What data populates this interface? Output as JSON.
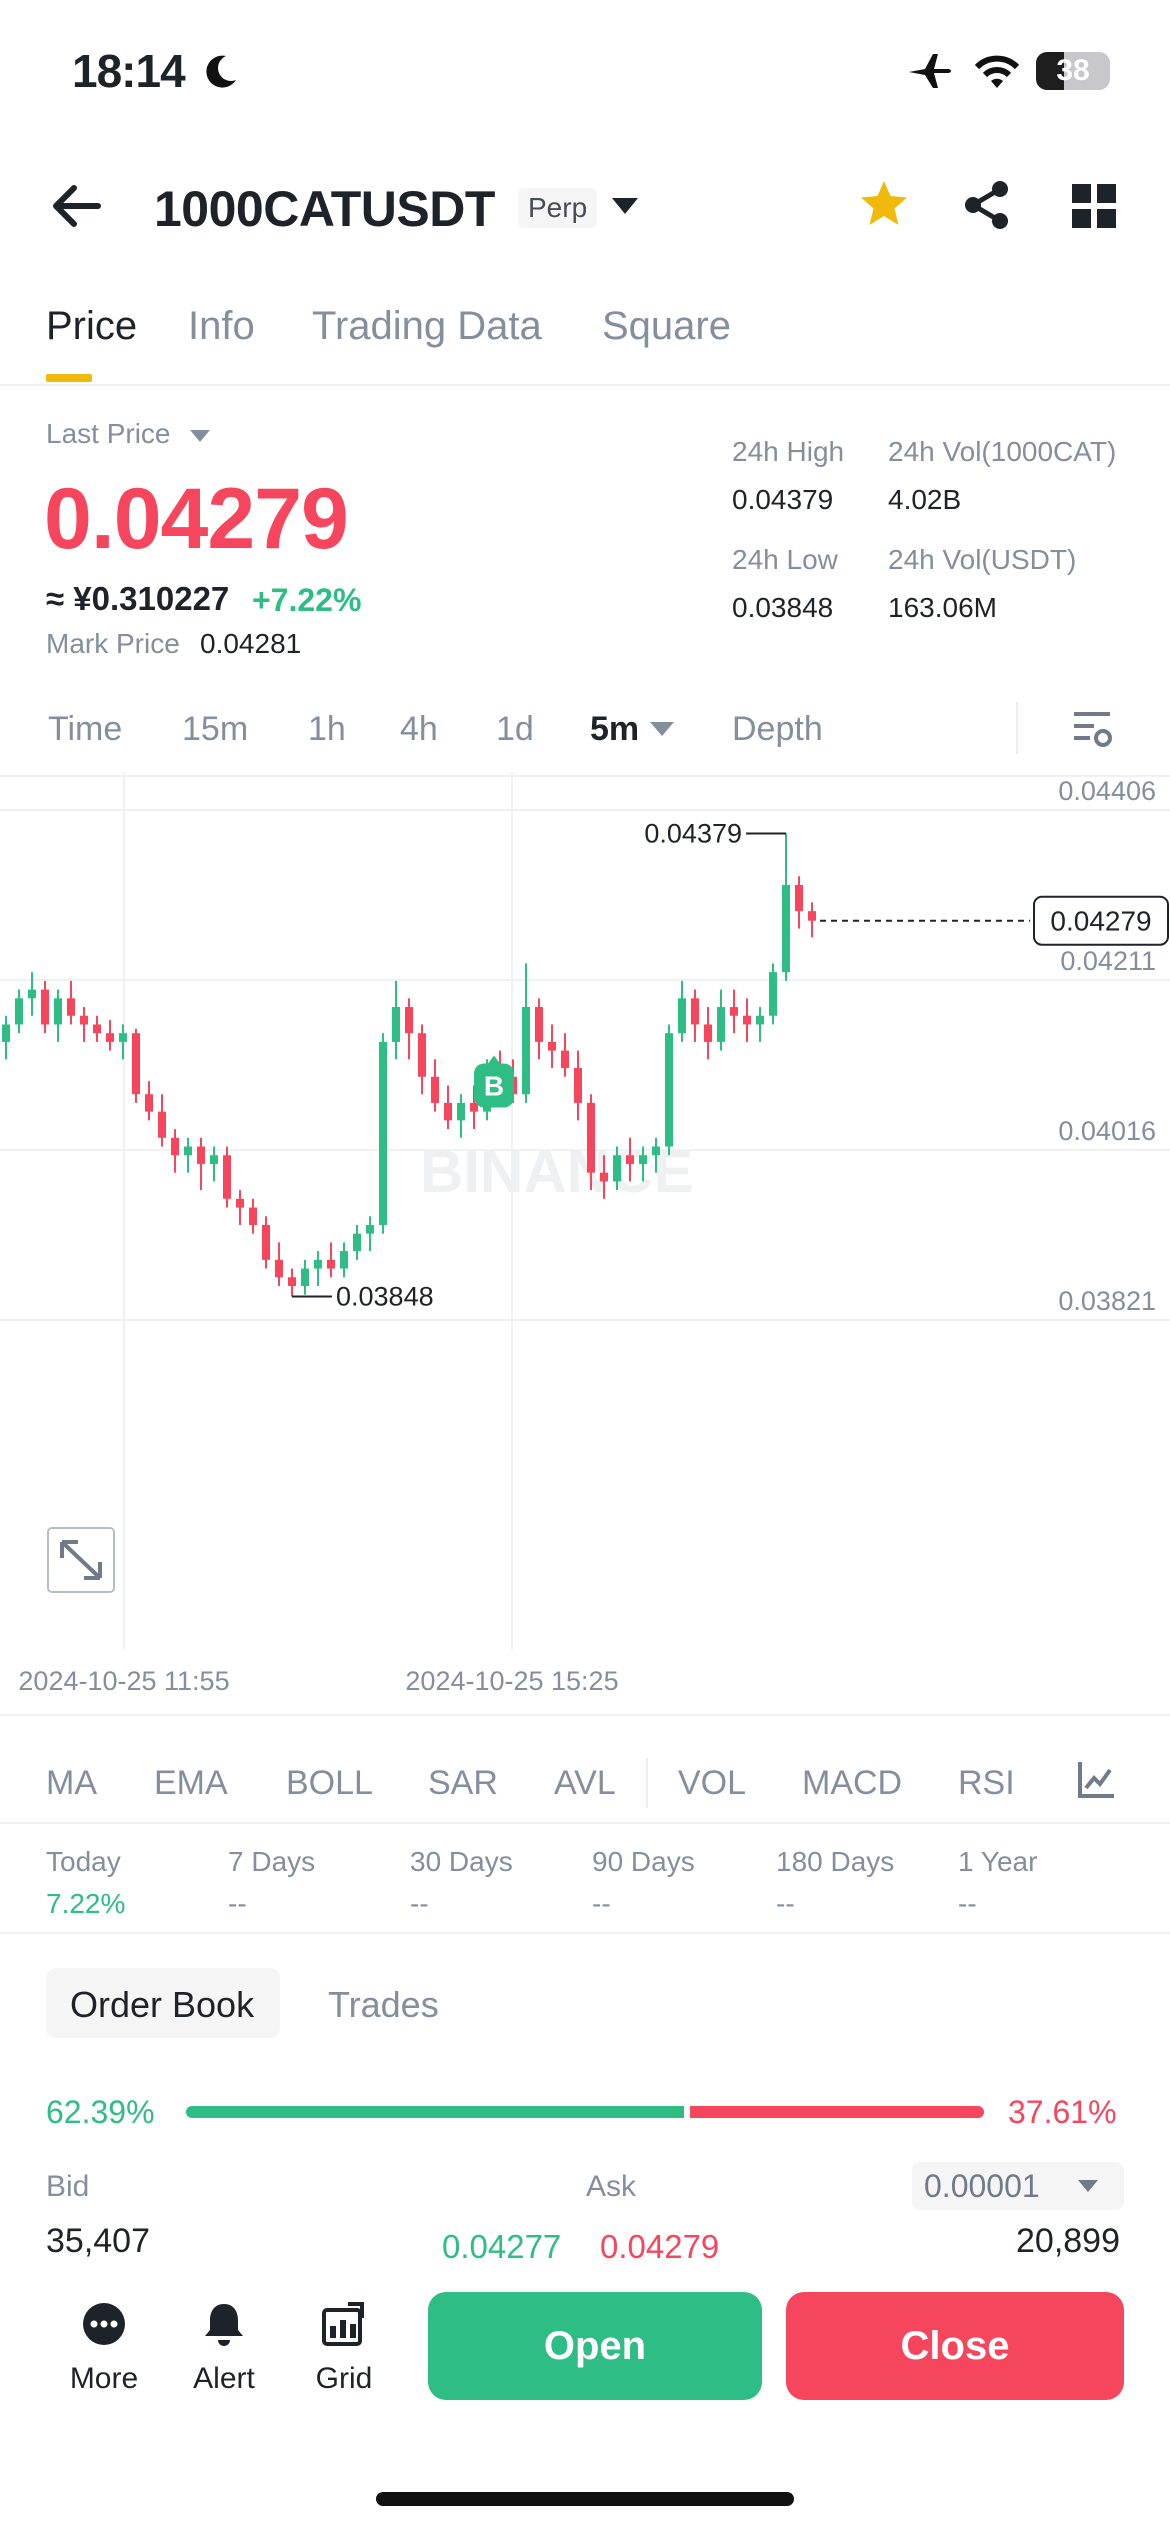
{
  "status_bar": {
    "time": "18:14",
    "battery": "38"
  },
  "header": {
    "symbol": "1000CATUSDT",
    "contract_type": "Perp"
  },
  "tabs": [
    "Price",
    "Info",
    "Trading Data",
    "Square"
  ],
  "price": {
    "label": "Last Price",
    "last": "0.04279",
    "approx": "≈ ¥0.310227",
    "change": "+7.22%",
    "mark_label": "Mark Price",
    "mark": "0.04281"
  },
  "stats": {
    "high_label": "24h High",
    "high": "0.04379",
    "vol_base_label": "24h Vol(1000CAT)",
    "vol_base": "4.02B",
    "low_label": "24h Low",
    "low": "0.03848",
    "vol_quote_label": "24h Vol(USDT)",
    "vol_quote": "163.06M"
  },
  "intervals": [
    "Time",
    "15m",
    "1h",
    "4h",
    "1d",
    "5m",
    "Depth"
  ],
  "chart_data": {
    "type": "candlestick",
    "y_ticks": [
      "0.04406",
      "0.04211",
      "0.04016",
      "0.03821"
    ],
    "ylim": [
      0.03821,
      0.04406
    ],
    "x_ticks": [
      "2024-10-25 11:55",
      "2024-10-25 15:25"
    ],
    "current_price_tag": "0.04279",
    "max_label": "0.04379",
    "min_label": "0.03848",
    "marker": "B",
    "watermark": "BINANCE",
    "colors": {
      "up": "#2ebd85",
      "down": "#f6465d"
    },
    "candles": [
      [
        0.0414,
        0.0417,
        0.0412,
        0.0416
      ],
      [
        0.0416,
        0.042,
        0.0415,
        0.0419
      ],
      [
        0.0419,
        0.0422,
        0.0417,
        0.042
      ],
      [
        0.042,
        0.0421,
        0.0415,
        0.0416
      ],
      [
        0.0416,
        0.042,
        0.0414,
        0.0419
      ],
      [
        0.0419,
        0.0421,
        0.0416,
        0.0417
      ],
      [
        0.0417,
        0.0418,
        0.0414,
        0.0416
      ],
      [
        0.0416,
        0.0417,
        0.0414,
        0.0415
      ],
      [
        0.0415,
        0.04165,
        0.0413,
        0.0414
      ],
      [
        0.0414,
        0.0416,
        0.0412,
        0.0415
      ],
      [
        0.0415,
        0.04155,
        0.0407,
        0.0408
      ],
      [
        0.0408,
        0.04095,
        0.0405,
        0.0406
      ],
      [
        0.0406,
        0.0408,
        0.0402,
        0.0403
      ],
      [
        0.0403,
        0.0404,
        0.0399,
        0.0401
      ],
      [
        0.0401,
        0.0403,
        0.0399,
        0.0402
      ],
      [
        0.0402,
        0.0403,
        0.0397,
        0.04
      ],
      [
        0.04,
        0.0402,
        0.0398,
        0.0401
      ],
      [
        0.0401,
        0.0402,
        0.0395,
        0.0396
      ],
      [
        0.0396,
        0.0397,
        0.0393,
        0.0395
      ],
      [
        0.0395,
        0.0396,
        0.0392,
        0.0393
      ],
      [
        0.0393,
        0.0394,
        0.0388,
        0.0389
      ],
      [
        0.0389,
        0.0391,
        0.0386,
        0.0387
      ],
      [
        0.0387,
        0.0388,
        0.03848,
        0.0386
      ],
      [
        0.0386,
        0.0389,
        0.0385,
        0.0388
      ],
      [
        0.0388,
        0.039,
        0.0386,
        0.0389
      ],
      [
        0.0389,
        0.0391,
        0.0387,
        0.0388
      ],
      [
        0.0388,
        0.0391,
        0.0387,
        0.039
      ],
      [
        0.039,
        0.0393,
        0.0389,
        0.0392
      ],
      [
        0.0392,
        0.0394,
        0.039,
        0.0393
      ],
      [
        0.0393,
        0.0415,
        0.0392,
        0.0414
      ],
      [
        0.0414,
        0.0421,
        0.0412,
        0.0418
      ],
      [
        0.0418,
        0.0419,
        0.0412,
        0.0415
      ],
      [
        0.0415,
        0.0416,
        0.0408,
        0.041
      ],
      [
        0.041,
        0.0412,
        0.0406,
        0.0407
      ],
      [
        0.0407,
        0.0409,
        0.0404,
        0.0405
      ],
      [
        0.0405,
        0.0408,
        0.0403,
        0.0407
      ],
      [
        0.0407,
        0.0409,
        0.0404,
        0.0406
      ],
      [
        0.0406,
        0.0412,
        0.0405,
        0.0411
      ],
      [
        0.0411,
        0.0413,
        0.0408,
        0.041
      ],
      [
        0.041,
        0.0412,
        0.0407,
        0.0408
      ],
      [
        0.0408,
        0.0423,
        0.0407,
        0.0418
      ],
      [
        0.0418,
        0.0419,
        0.0412,
        0.0414
      ],
      [
        0.0414,
        0.0416,
        0.0411,
        0.0413
      ],
      [
        0.0413,
        0.0415,
        0.041,
        0.0411
      ],
      [
        0.0411,
        0.0413,
        0.0405,
        0.0407
      ],
      [
        0.0407,
        0.0408,
        0.0397,
        0.0399
      ],
      [
        0.0399,
        0.0401,
        0.0396,
        0.0398
      ],
      [
        0.0398,
        0.0402,
        0.0397,
        0.0401
      ],
      [
        0.0401,
        0.0403,
        0.0398,
        0.04
      ],
      [
        0.04,
        0.0402,
        0.0398,
        0.0401
      ],
      [
        0.0401,
        0.0403,
        0.0399,
        0.0402
      ],
      [
        0.0402,
        0.0416,
        0.0401,
        0.0415
      ],
      [
        0.0415,
        0.0421,
        0.0414,
        0.0419
      ],
      [
        0.0419,
        0.042,
        0.0414,
        0.0416
      ],
      [
        0.0416,
        0.0418,
        0.0412,
        0.0414
      ],
      [
        0.0414,
        0.042,
        0.0413,
        0.0418
      ],
      [
        0.0418,
        0.042,
        0.0415,
        0.0417
      ],
      [
        0.0417,
        0.0419,
        0.0414,
        0.0416
      ],
      [
        0.0416,
        0.0418,
        0.0414,
        0.0417
      ],
      [
        0.0417,
        0.0423,
        0.0416,
        0.0422
      ],
      [
        0.0422,
        0.04379,
        0.0421,
        0.0432
      ],
      [
        0.0432,
        0.0433,
        0.0427,
        0.0429
      ],
      [
        0.0429,
        0.043,
        0.0426,
        0.04279
      ]
    ]
  },
  "indicators": [
    "MA",
    "EMA",
    "BOLL",
    "SAR",
    "AVL",
    "VOL",
    "MACD",
    "RSI"
  ],
  "periods": [
    {
      "label": "Today",
      "value": "7.22%"
    },
    {
      "label": "7 Days",
      "value": "--"
    },
    {
      "label": "30 Days",
      "value": "--"
    },
    {
      "label": "90 Days",
      "value": "--"
    },
    {
      "label": "180 Days",
      "value": "--"
    },
    {
      "label": "1 Year",
      "value": "--"
    }
  ],
  "order_book": {
    "tab_order_book": "Order Book",
    "tab_trades": "Trades",
    "bid_pct": "62.39%",
    "ask_pct": "37.61%",
    "bid_ratio": 0.6239,
    "bid_label": "Bid",
    "ask_label": "Ask",
    "tick_size": "0.00001",
    "bid_qty": "35,407",
    "bid_price": "0.04277",
    "ask_price": "0.04279",
    "ask_qty": "20,899"
  },
  "bottom_bar": {
    "more": "More",
    "alert": "Alert",
    "grid": "Grid",
    "open": "Open",
    "close": "Close"
  }
}
